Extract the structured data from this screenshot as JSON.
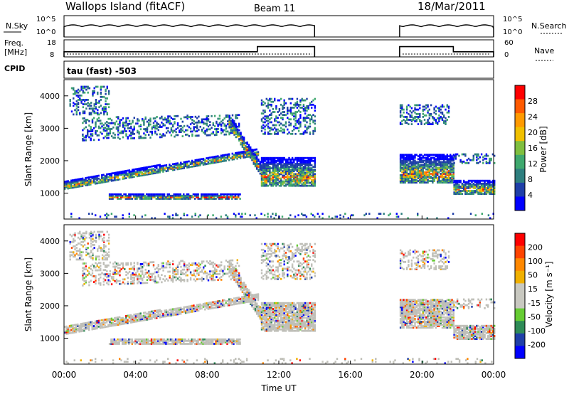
{
  "header": {
    "station": "Wallops Island (fitACF)",
    "beam": "Beam 11",
    "date": "18/Mar/2011"
  },
  "panel_labels": {
    "nsky": "N.Sky",
    "freq_line1": "Freq.",
    "freq_line2": "[MHz]",
    "cpid": "CPID",
    "cpid_value": "tau (fast) -503",
    "nsearch": "N.Search",
    "nave": "Nave"
  },
  "colors": {
    "power_scale": [
      "#0000ff",
      "#1f3fa8",
      "#2e7f7f",
      "#3fa86e",
      "#7fbf3f",
      "#f0c000",
      "#ff9a00",
      "#ff5a00",
      "#ff0000"
    ],
    "velocity_scale": [
      "#ff0000",
      "#ff4400",
      "#ff8800",
      "#f0b000",
      "#c8c8c0",
      "#c8c8c0",
      "#66cc33",
      "#2e8b57",
      "#1f3fa8",
      "#0000ff"
    ],
    "ground_scatter": "#bfbfb8"
  },
  "chart_data": [
    {
      "type": "line",
      "name": "noise",
      "ylabel": "N.Sky",
      "y_ticks_left": [
        "10^5",
        "10^0"
      ],
      "y_ticks_right": [
        "10^5",
        "10^0"
      ],
      "right_label": "N.Search",
      "x": [
        "00:00",
        "14:00",
        "18:45",
        "24:00"
      ],
      "segments": [
        [
          0.0,
          14.0
        ],
        [
          18.75,
          24.0
        ]
      ]
    },
    {
      "type": "line",
      "name": "frequency",
      "ylabel": "Freq. [MHz]",
      "ylim": [
        8,
        18
      ],
      "y_ticks": [
        "18",
        "8"
      ],
      "y2lim": [
        0,
        60
      ],
      "y2_ticks": [
        "60",
        "0"
      ],
      "y2label": "Nave",
      "series": [
        {
          "x": [
            0.0,
            10.8,
            10.8,
            14.0
          ],
          "y": [
            11,
            11,
            14,
            14
          ]
        },
        {
          "x": [
            18.75,
            21.75,
            21.75,
            24.0
          ],
          "y": [
            14,
            14,
            11,
            11
          ]
        }
      ]
    },
    {
      "type": "heatmap",
      "ylabel": "Slant Range [km]",
      "ylim": [
        200,
        4500
      ],
      "y_ticks": [
        1000,
        2000,
        3000,
        4000
      ],
      "colorbar_label": "Power [dB]",
      "colorbar_ticks": [
        28,
        24,
        20,
        16,
        12,
        8,
        4
      ],
      "clim": [
        0,
        30
      ]
    },
    {
      "type": "heatmap",
      "xlabel": "Time UT",
      "ylabel": "Slant Range [km]",
      "ylim": [
        200,
        4500
      ],
      "y_ticks": [
        1000,
        2000,
        3000,
        4000
      ],
      "x_ticks": [
        "00:00",
        "04:00",
        "08:00",
        "12:00",
        "16:00",
        "20:00",
        "00:00"
      ],
      "colorbar_label": "Velocity [m s⁻¹]",
      "colorbar_ticks": [
        200,
        100,
        50,
        15,
        -15,
        -50,
        -100,
        -200
      ]
    }
  ],
  "scatter_regions": [
    {
      "t": [
        0.0,
        10.8
      ],
      "r0": [
        1100,
        2150
      ],
      "r1": [
        1350,
        2350
      ],
      "kind": "band"
    },
    {
      "t": [
        1.0,
        9.8
      ],
      "r0": [
        2600,
        2800
      ],
      "r1": [
        3300,
        3400
      ],
      "kind": "patchy"
    },
    {
      "t": [
        0.3,
        2.5
      ],
      "r0": [
        3400,
        3400
      ],
      "r1": [
        4300,
        4300
      ],
      "kind": "patchy"
    },
    {
      "t": [
        2.5,
        9.8
      ],
      "r0": [
        800,
        800
      ],
      "r1": [
        950,
        950
      ],
      "kind": "band"
    },
    {
      "t": [
        9.2,
        11.0
      ],
      "r0": [
        3000,
        1500
      ],
      "r1": [
        3400,
        1900
      ],
      "kind": "band"
    },
    {
      "t": [
        11.0,
        14.0
      ],
      "r0": [
        1200,
        1200
      ],
      "r1": [
        2100,
        2100
      ],
      "kind": "band"
    },
    {
      "t": [
        11.0,
        14.0
      ],
      "r0": [
        2800,
        2800
      ],
      "r1": [
        3900,
        3900
      ],
      "kind": "patchy"
    },
    {
      "t": [
        18.75,
        21.75
      ],
      "r0": [
        1300,
        1300
      ],
      "r1": [
        2200,
        2200
      ],
      "kind": "band"
    },
    {
      "t": [
        18.75,
        21.5
      ],
      "r0": [
        3100,
        3100
      ],
      "r1": [
        3700,
        3700
      ],
      "kind": "patchy"
    },
    {
      "t": [
        21.75,
        24.0
      ],
      "r0": [
        950,
        950
      ],
      "r1": [
        1400,
        1400
      ],
      "kind": "band"
    },
    {
      "t": [
        21.75,
        24.0
      ],
      "r0": [
        1900,
        1900
      ],
      "r1": [
        2200,
        2200
      ],
      "kind": "patchy"
    },
    {
      "t": [
        0.0,
        24.0
      ],
      "r0": [
        200,
        200
      ],
      "r1": [
        350,
        350
      ],
      "kind": "sparse"
    }
  ]
}
